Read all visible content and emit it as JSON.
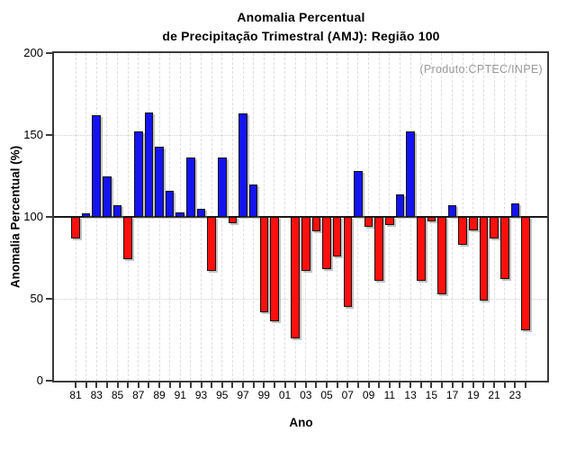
{
  "title": {
    "line1": "Anomalia Percentual",
    "line2": "de Precipitação Trimestral (AMJ): Região 100"
  },
  "annotation": "(Produto:CPTEC/INPE)",
  "chart_data": {
    "type": "bar",
    "title": "Anomalia Percentual de Precipitação Trimestral (AMJ): Região 100",
    "xlabel": "Ano",
    "ylabel": "Anomalia Percentual (%)",
    "ylim": [
      0,
      200
    ],
    "yticks": [
      0,
      50,
      100,
      150,
      200
    ],
    "grid": "dashed vertical per year, dotted horizontal at 50 and 150",
    "baseline": 100,
    "legend_position": "none",
    "categories": [
      "81",
      "82",
      "83",
      "84",
      "85",
      "86",
      "87",
      "88",
      "89",
      "90",
      "91",
      "92",
      "93",
      "94",
      "95",
      "96",
      "97",
      "98",
      "99",
      "00",
      "01",
      "02",
      "03",
      "04",
      "05",
      "06",
      "07",
      "08",
      "09",
      "10",
      "11",
      "12",
      "13",
      "14",
      "15",
      "16",
      "17",
      "18",
      "19",
      "20",
      "21",
      "22",
      "23",
      "24"
    ],
    "x_labels_shown": [
      "81",
      "83",
      "85",
      "87",
      "89",
      "91",
      "93",
      "95",
      "97",
      "99",
      "01",
      "03",
      "05",
      "07",
      "09",
      "11",
      "13",
      "15",
      "17",
      "19",
      "21",
      "23"
    ],
    "values": [
      87,
      102,
      162,
      125,
      107,
      74,
      152,
      164,
      143,
      116,
      103,
      136,
      105,
      67,
      136,
      96,
      163,
      120,
      42,
      36,
      100,
      26,
      67,
      91,
      68,
      76,
      45,
      128,
      94,
      61,
      95,
      114,
      152,
      61,
      97,
      53,
      107,
      83,
      92,
      49,
      87,
      62,
      108,
      31
    ],
    "colors": {
      "above_baseline": "#1414f0",
      "below_baseline": "#fb100e",
      "bar_border": "#141414",
      "annotation_gray": "#999999",
      "axis": "#3a3a3a"
    }
  }
}
